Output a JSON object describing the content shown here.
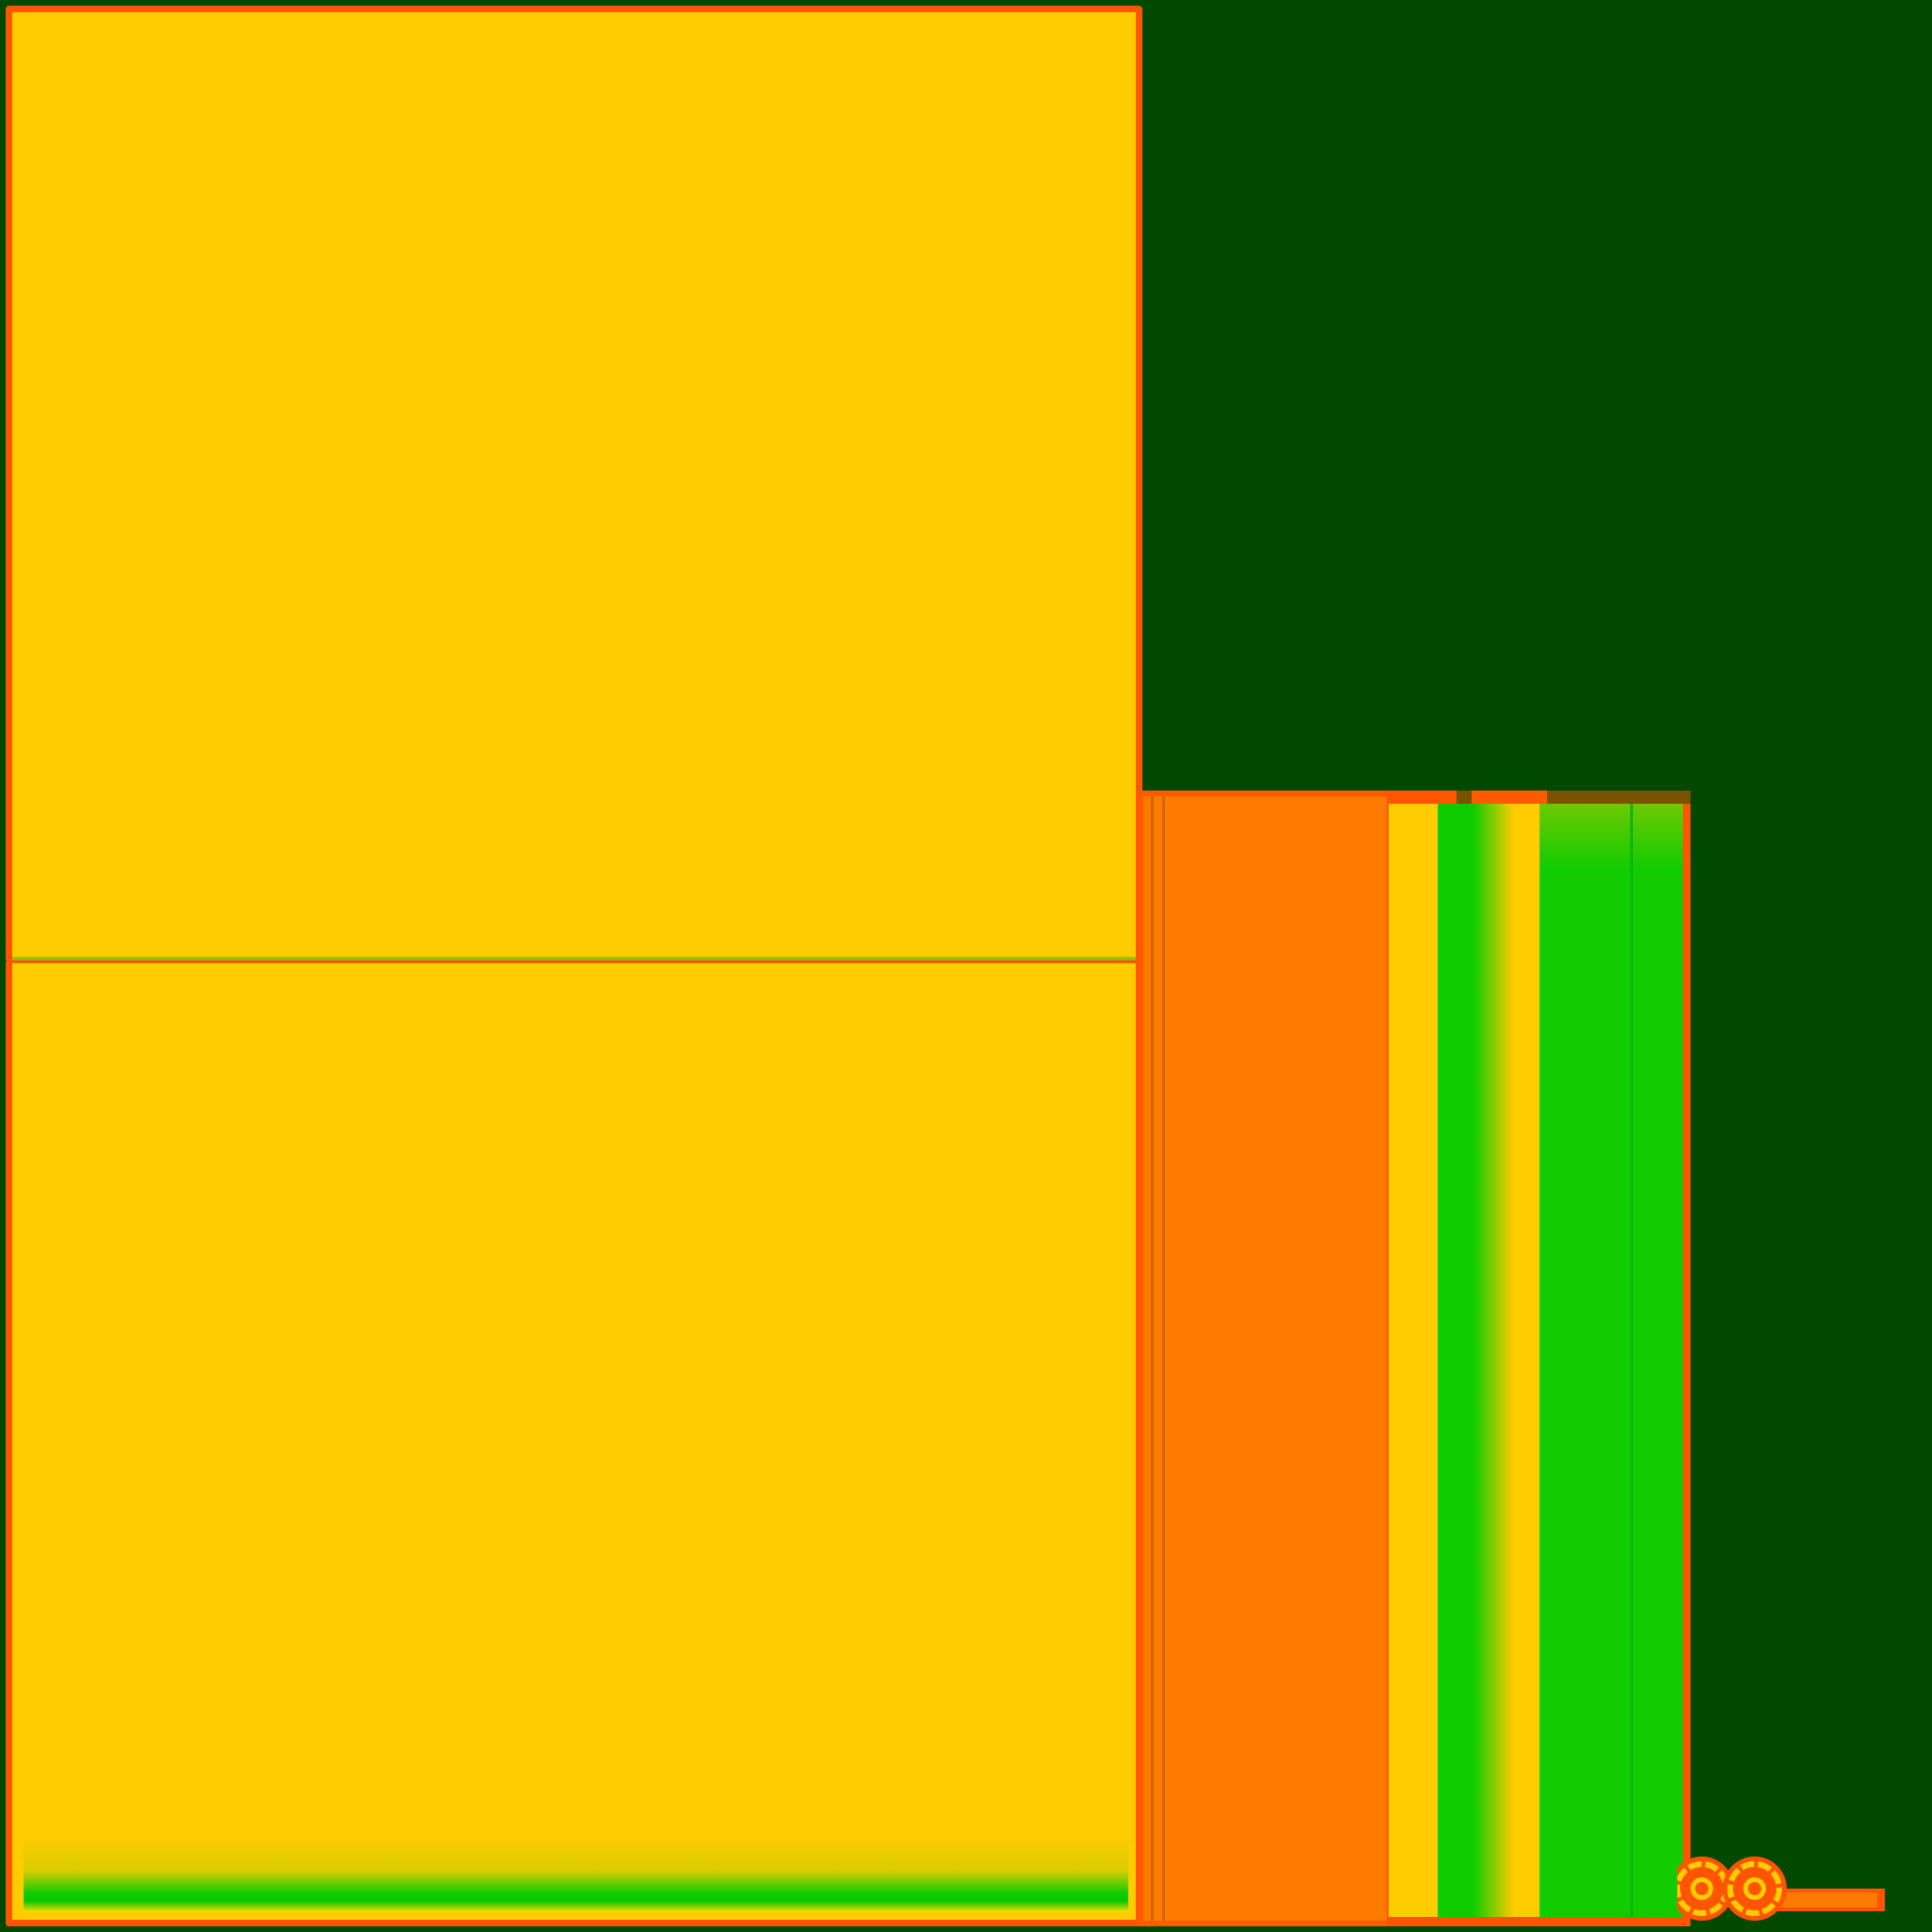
{
  "canvas": {
    "background": "#014901"
  },
  "colors": {
    "yellow": "#ffcc00",
    "orange": "#ff7a00",
    "border_orange": "#ff5500",
    "green": "#10cc00",
    "dark_green": "#014901"
  },
  "icons": {
    "rings": "double-ring-icon"
  }
}
